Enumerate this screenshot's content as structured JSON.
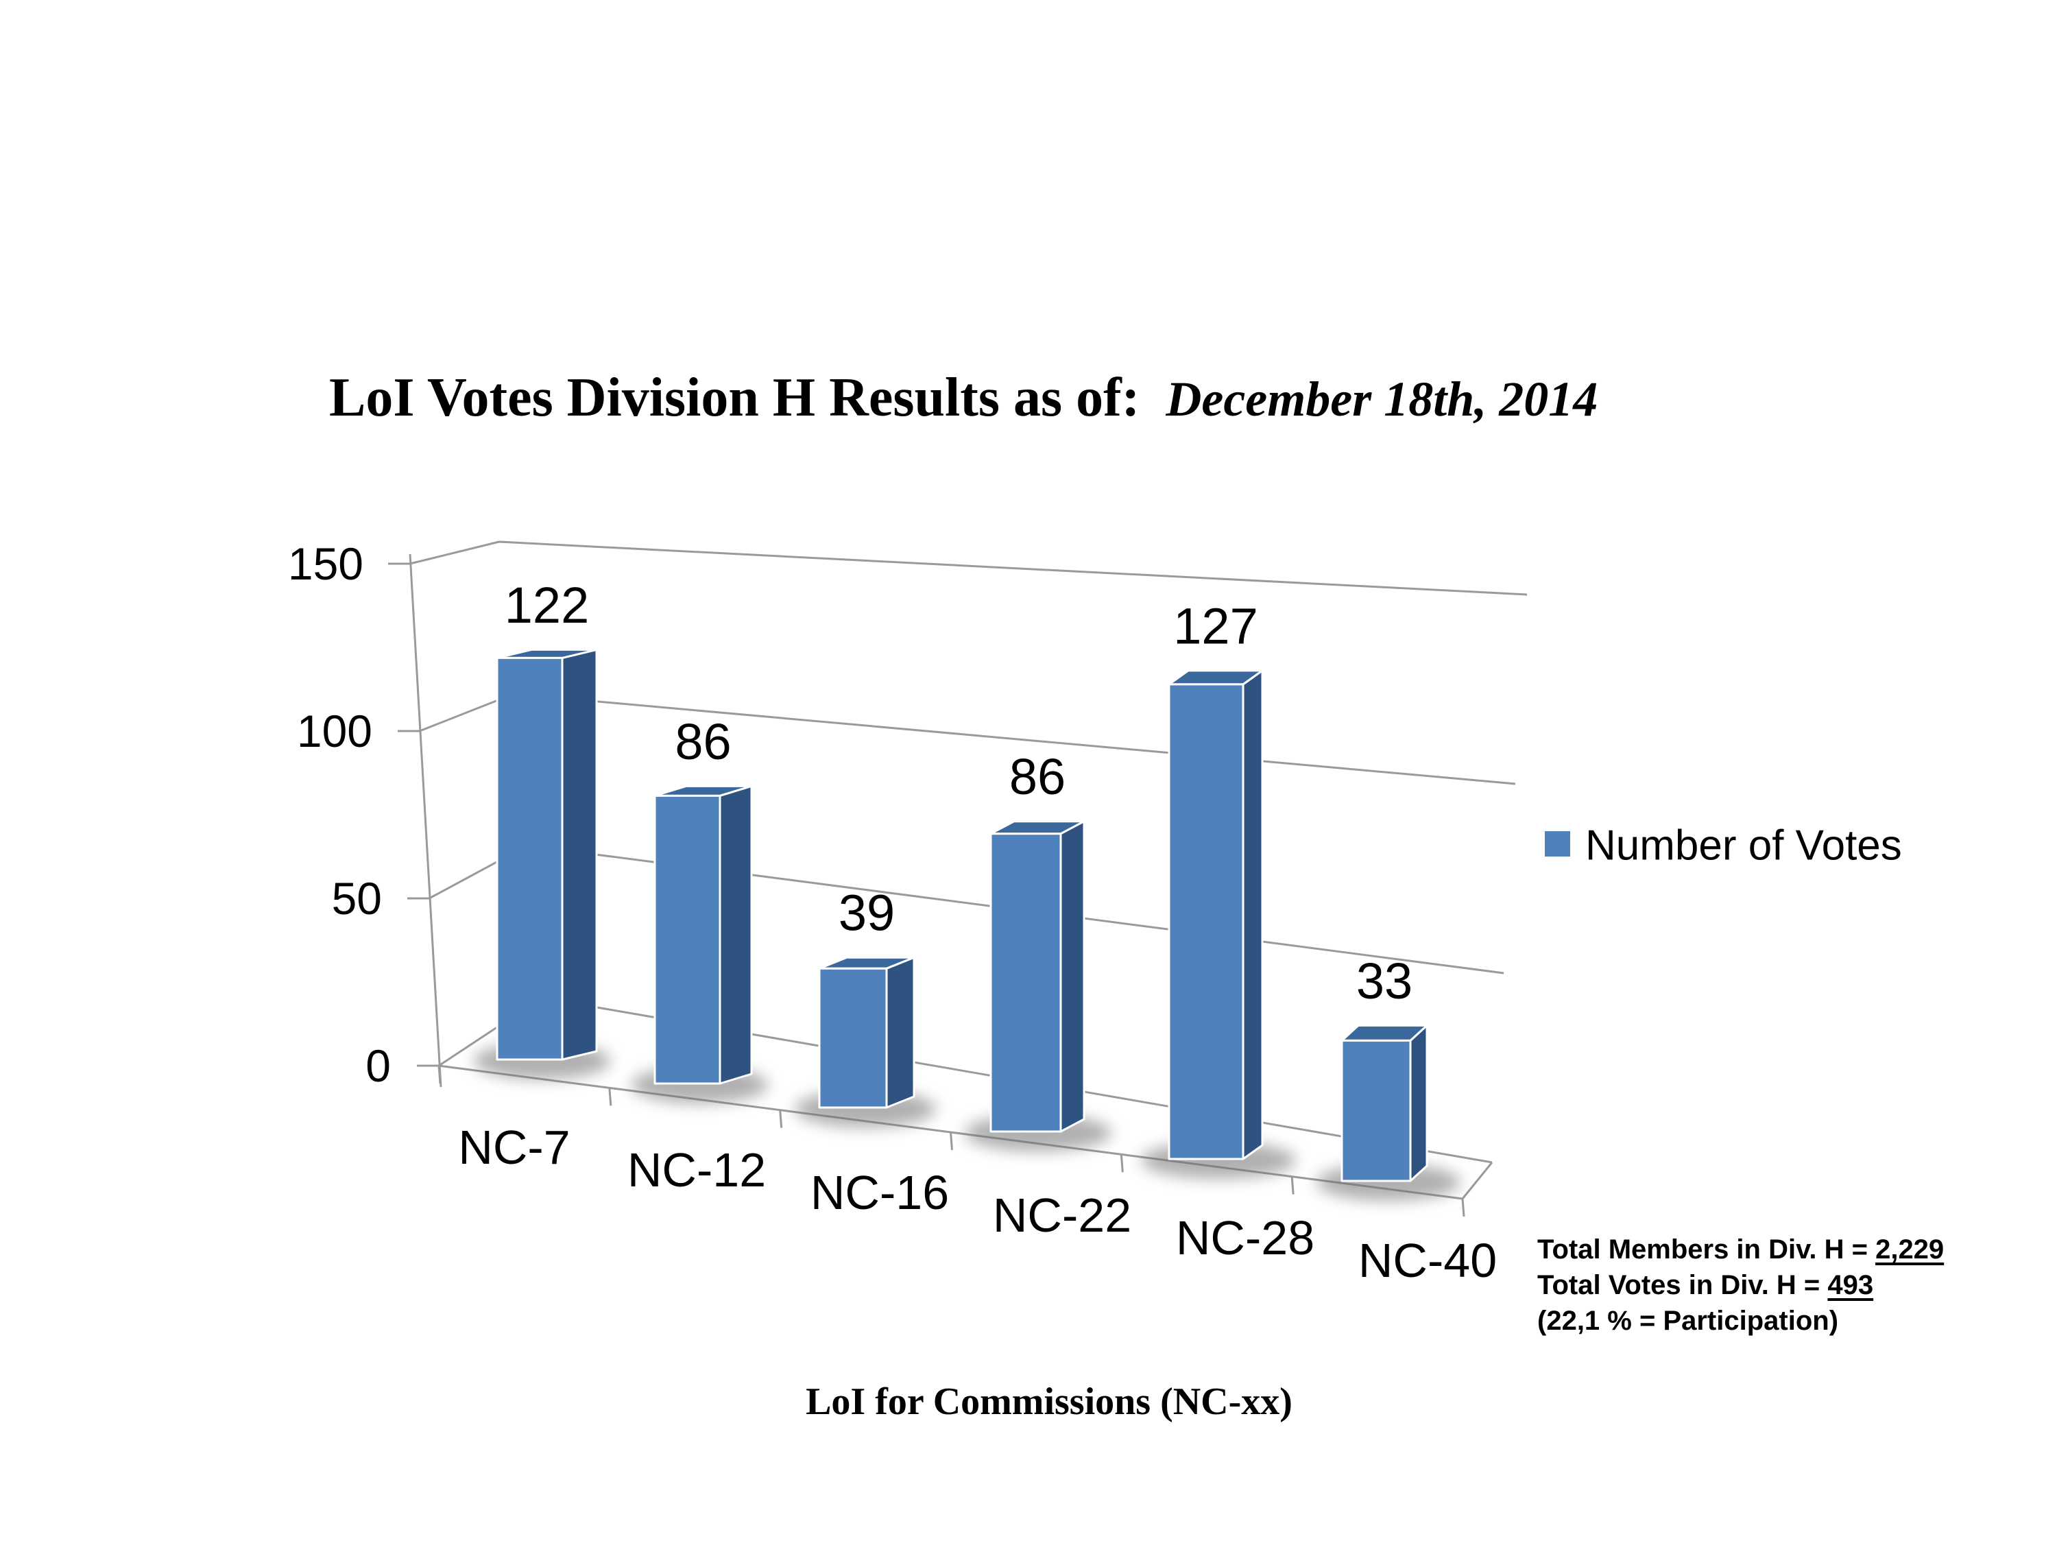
{
  "title": {
    "main": "LoI Votes Division H Results as of:",
    "date": "December 18th, 2014"
  },
  "chart_data": {
    "type": "bar",
    "projection": "3d",
    "categories": [
      "NC-7",
      "NC-12",
      "NC-16",
      "NC-22",
      "NC-28",
      "NC-40"
    ],
    "series": [
      {
        "name": "Number of Votes",
        "values": [
          122,
          86,
          39,
          86,
          127,
          33
        ]
      }
    ],
    "data_labels": [
      "122",
      "86",
      "39",
      "86",
      "127",
      "33"
    ],
    "xlabel": "LoI for Commissions (NC-xx)",
    "ylabel": "",
    "y_ticks": [
      "150",
      "100",
      "50",
      "0"
    ],
    "ylim": [
      0,
      150
    ],
    "grid": true,
    "legend_position": "right"
  },
  "legend": {
    "label": "Number of Votes",
    "swatch_color": "#4f81bd"
  },
  "footnote": {
    "lines": [
      {
        "text": "Total Members in Div. H = ",
        "value": "2,229"
      },
      {
        "text": "Total Votes in Div. H = ",
        "value": "493"
      },
      {
        "text": "(22,1 % = Participation)",
        "value": ""
      }
    ]
  },
  "colors": {
    "bar_front": "#4f81bd",
    "bar_side": "#2e5380",
    "bar_top": "#3a689c",
    "bar_edge": "#ffffff",
    "gridline": "#9a9a9a",
    "axis": "#9a9a9a",
    "shadow": "#6f6f6f",
    "text": "#000000"
  }
}
